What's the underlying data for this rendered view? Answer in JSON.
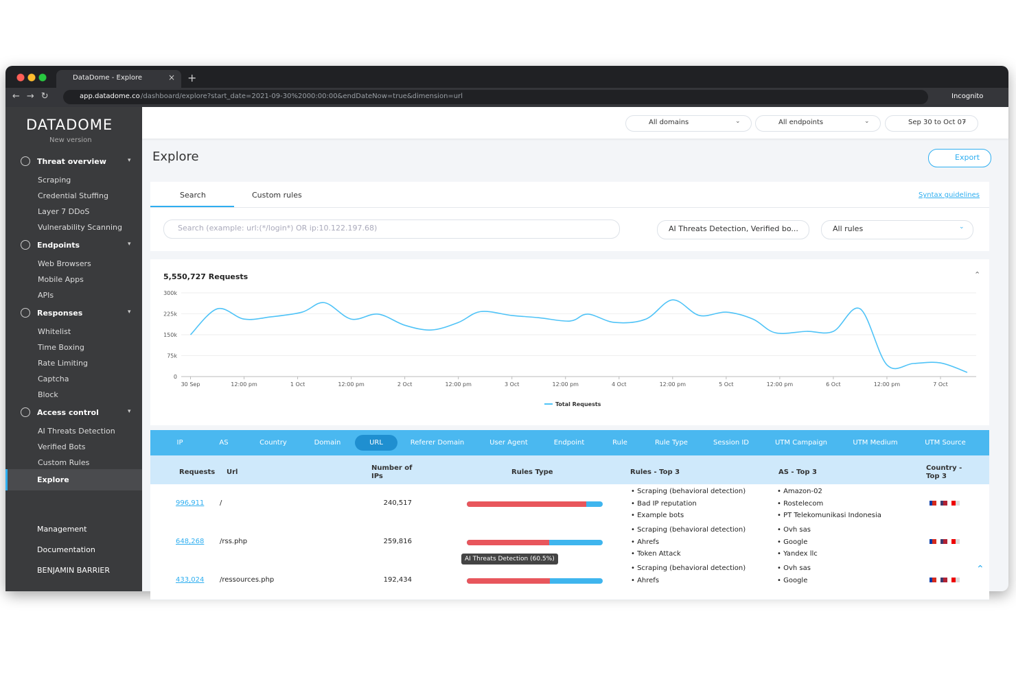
{
  "browser": {
    "tab_title": "DataDome - Explore",
    "url_host": "app.datadome.co",
    "url_path": "/dashboard/explore?start_date=2021-09-30%2000:00:00&endDateNow=true&dimension=url",
    "profile": "Incognito"
  },
  "sidebar": {
    "logo": "DATADOME",
    "version": "New version",
    "sections": [
      {
        "title": "Threat overview",
        "items": [
          "Scraping",
          "Credential Stuffing",
          "Layer 7 DDoS",
          "Vulnerability Scanning"
        ]
      },
      {
        "title": "Endpoints",
        "items": [
          "Web Browsers",
          "Mobile Apps",
          "APIs"
        ]
      },
      {
        "title": "Responses",
        "items": [
          "Whitelist",
          "Time Boxing",
          "Rate Limiting",
          "Captcha",
          "Block"
        ]
      },
      {
        "title": "Access control",
        "items": [
          "AI Threats Detection",
          "Verified Bots",
          "Custom Rules"
        ]
      }
    ],
    "active": "Explore",
    "bottom": [
      "Management",
      "Documentation",
      "BENJAMIN BARRIER"
    ]
  },
  "topbar": {
    "domains": "All domains",
    "endpoints": "All endpoints",
    "dates": "Sep 30 to Oct 07"
  },
  "explore": {
    "title": "Explore",
    "export": "Export",
    "tabs": [
      "Search",
      "Custom rules"
    ],
    "syntax": "Syntax guidelines",
    "search_placeholder": "Search (example: url:(*/login*) OR ip:10.122.197.68)",
    "filter": "AI Threats Detection, Verified bo...",
    "rules": "All rules"
  },
  "chart_data": {
    "type": "line",
    "title": "5,550,727 Requests",
    "x": [
      0,
      6,
      12,
      18,
      25,
      30,
      36,
      42,
      48,
      54,
      60,
      65,
      72,
      78,
      85,
      89,
      95,
      102,
      108,
      114,
      120,
      126,
      131,
      138,
      144,
      150,
      156,
      162,
      168,
      174
    ],
    "series": [
      {
        "name": "Total Requests",
        "color": "#4fc3f7",
        "values": [
          150000,
          243000,
          206000,
          214000,
          231000,
          265000,
          206000,
          224000,
          184000,
          167000,
          194000,
          233000,
          219000,
          211000,
          199000,
          224000,
          194000,
          206000,
          275000,
          219000,
          231000,
          206000,
          157000,
          162000,
          162000,
          243000,
          42000,
          47000,
          49000,
          15000
        ]
      }
    ],
    "xlim": [
      -3,
      176
    ],
    "xticks": [
      {
        "value": 0,
        "label": "30 Sep"
      },
      {
        "value": 12,
        "label": "12:00 pm"
      },
      {
        "value": 24,
        "label": "1 Oct"
      },
      {
        "value": 36,
        "label": "12:00 pm"
      },
      {
        "value": 48,
        "label": "2 Oct"
      },
      {
        "value": 60,
        "label": "12:00 pm"
      },
      {
        "value": 72,
        "label": "3 Oct"
      },
      {
        "value": 84,
        "label": "12:00 pm"
      },
      {
        "value": 96,
        "label": "4 Oct"
      },
      {
        "value": 108,
        "label": "12:00 pm"
      },
      {
        "value": 120,
        "label": "5 Oct"
      },
      {
        "value": 132,
        "label": "12:00 pm"
      },
      {
        "value": 144,
        "label": "6 Oct"
      },
      {
        "value": 156,
        "label": "12:00 pm"
      },
      {
        "value": 168,
        "label": "7 Oct"
      }
    ],
    "ylim": [
      0,
      300000
    ],
    "yticks": [
      0,
      {
        "value": 75000,
        "label": "75k"
      },
      {
        "value": 150000,
        "label": "150k"
      },
      {
        "value": 225000,
        "label": "225k"
      },
      {
        "value": 300000,
        "label": "300k"
      }
    ],
    "grid": true
  },
  "dimensions": [
    "IP",
    "AS",
    "Country",
    "Domain",
    "URL",
    "Referer Domain",
    "User Agent",
    "Endpoint",
    "Rule",
    "Rule Type",
    "Session ID",
    "UTM Campaign",
    "UTM Medium",
    "UTM Source"
  ],
  "table": {
    "headers": [
      "Requests",
      "Url",
      "Number of IPs",
      "Rules Type",
      "Rules - Top 3",
      "AS - Top 3",
      "Country - Top 3"
    ],
    "rows": [
      {
        "requests": "996,911",
        "url": "/",
        "ips": "240,517",
        "ai_threats": 88,
        "rules": [
          "Scraping (behavioral detection)",
          "Bad IP reputation",
          "Example bots"
        ],
        "as": [
          "Amazon-02",
          "Rostelecom",
          "PT Telekomunikasi Indonesia"
        ]
      },
      {
        "requests": "648,268",
        "url": "/rss.php",
        "ips": "259,816",
        "ai_threats": 60.5,
        "rules": [
          "Scraping (behavioral detection)",
          "Ahrefs",
          "Token Attack"
        ],
        "as": [
          "Ovh sas",
          "Google",
          "Yandex llc"
        ]
      },
      {
        "requests": "433,024",
        "url": "/ressources.php",
        "ips": "192,434",
        "ai_threats": 61,
        "rules": [
          "Scraping (behavioral detection)",
          "Ahrefs"
        ],
        "as": [
          "Ovh sas",
          "Google"
        ]
      }
    ],
    "tooltip": "AI Threats Detection (60.5%)"
  }
}
